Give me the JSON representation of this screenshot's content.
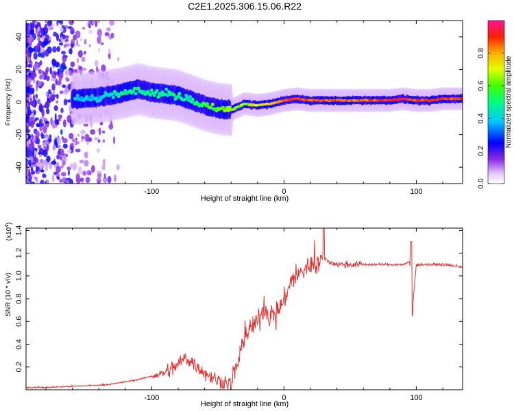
{
  "title": "C2E1.2025.306.15.06.R22",
  "chart_data": [
    {
      "type": "heatmap",
      "xlabel": "Height of straight line (km)",
      "ylabel": "Frequency (Hz)",
      "xlim": [
        -195,
        135
      ],
      "ylim": [
        -50,
        50
      ],
      "xticks": [
        -100,
        0,
        100
      ],
      "xtick_labels": [
        "-100",
        "0",
        "100"
      ],
      "yticks": [
        -40,
        -20,
        0,
        20,
        40
      ],
      "ytick_labels": [
        "-40",
        "-20",
        "0",
        "20",
        "40"
      ],
      "colorbar": {
        "label": "Normalized spectral amplitude",
        "range": [
          0,
          1
        ],
        "ticks": [
          0.0,
          0.2,
          0.4,
          0.6,
          0.8
        ],
        "tick_labels": [
          "0.0",
          "0.2",
          "0.4",
          "0.6",
          "0.8"
        ]
      },
      "ridge": {
        "x": [
          -155,
          -140,
          -125,
          -110,
          -100,
          -90,
          -80,
          -70,
          -60,
          -50,
          -40,
          -30,
          -20,
          -10,
          0,
          10,
          20,
          40,
          60,
          80,
          90,
          100,
          110,
          120,
          135
        ],
        "freq": [
          2,
          3,
          5,
          8,
          6,
          5,
          4,
          1,
          -2,
          -4,
          -5,
          -1,
          -2,
          -1,
          1,
          2,
          1,
          1,
          1,
          1,
          2,
          1,
          1,
          2,
          2
        ],
        "amplitude": [
          0.35,
          0.4,
          0.45,
          0.5,
          0.5,
          0.48,
          0.5,
          0.5,
          0.55,
          0.6,
          0.65,
          0.65,
          0.7,
          0.75,
          0.85,
          0.9,
          0.85,
          0.85,
          0.85,
          0.9,
          0.95,
          0.85,
          0.9,
          0.9,
          0.9
        ]
      }
    },
    {
      "type": "line",
      "xlabel": "Height of straight line (km)",
      "ylabel": "SNR (10 * v/v)",
      "y_multiplier": "(x10",
      "y_multiplier_exp": "4",
      "y_multiplier_close": ")",
      "xlim": [
        -195,
        135
      ],
      "ylim": [
        0,
        1.42
      ],
      "xticks": [
        -100,
        0,
        100
      ],
      "xtick_labels": [
        "-100",
        "0",
        "100"
      ],
      "yticks": [
        0.2,
        0.4,
        0.6,
        0.8,
        1.0,
        1.2,
        1.4
      ],
      "ytick_labels": [
        "0.2",
        "0.4",
        "0.6",
        "0.8",
        "1.0",
        "1.2",
        "1.4"
      ],
      "color": "#e53030",
      "series": [
        {
          "name": "SNR",
          "x": [
            -195,
            -180,
            -160,
            -140,
            -130,
            -120,
            -110,
            -100,
            -90,
            -80,
            -75,
            -70,
            -60,
            -50,
            -40,
            -35,
            -30,
            -25,
            -20,
            -15,
            -10,
            -5,
            0,
            5,
            10,
            15,
            20,
            25,
            30,
            35,
            40,
            50,
            60,
            70,
            80,
            90,
            95,
            97,
            100,
            110,
            120,
            135
          ],
          "y": [
            0.02,
            0.02,
            0.03,
            0.04,
            0.05,
            0.07,
            0.09,
            0.12,
            0.15,
            0.22,
            0.28,
            0.25,
            0.15,
            0.08,
            0.05,
            0.25,
            0.45,
            0.55,
            0.6,
            0.72,
            0.65,
            0.7,
            0.78,
            0.95,
            1.0,
            1.05,
            1.1,
            1.12,
            1.15,
            1.12,
            1.1,
            1.1,
            1.1,
            1.1,
            1.1,
            1.1,
            1.12,
            0.7,
            1.1,
            1.1,
            1.1,
            1.08
          ]
        }
      ]
    }
  ]
}
